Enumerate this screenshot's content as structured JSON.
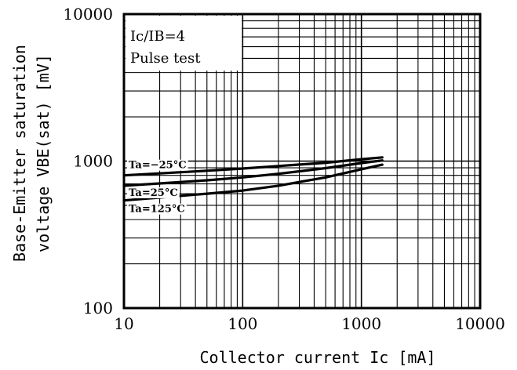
{
  "chart_data": {
    "type": "line",
    "xlabel": "Collector current Ic [mA]",
    "ylabel_line1": "Base-Emitter saturation",
    "ylabel_line2": "voltage VBE(sat) [mV]",
    "xscale": "log",
    "yscale": "log",
    "xlim": [
      10,
      10000
    ],
    "ylim": [
      100,
      10000
    ],
    "x_ticks": [
      10,
      100,
      1000,
      10000
    ],
    "x_tick_labels": [
      "10",
      "100",
      "1000",
      "10000"
    ],
    "y_ticks": [
      100,
      1000,
      10000
    ],
    "y_tick_labels": [
      "100",
      "1000",
      "10000"
    ],
    "grid": true,
    "annotation_line1": "Ic/IB=4",
    "annotation_line2": "Pulse test",
    "series": [
      {
        "name": "Ta=−25°C",
        "x": [
          10,
          20,
          50,
          100,
          200,
          500,
          1000,
          1500
        ],
        "y": [
          800,
          825,
          860,
          890,
          925,
          975,
          1030,
          1060
        ]
      },
      {
        "name": "Ta=25°C",
        "x": [
          10,
          20,
          50,
          100,
          200,
          500,
          1000,
          1500
        ],
        "y": [
          680,
          705,
          740,
          775,
          820,
          895,
          970,
          1010
        ]
      },
      {
        "name": "Ta=125°C",
        "x": [
          10,
          20,
          50,
          100,
          200,
          500,
          1000,
          1500
        ],
        "y": [
          540,
          565,
          600,
          630,
          680,
          775,
          880,
          945
        ]
      }
    ]
  }
}
